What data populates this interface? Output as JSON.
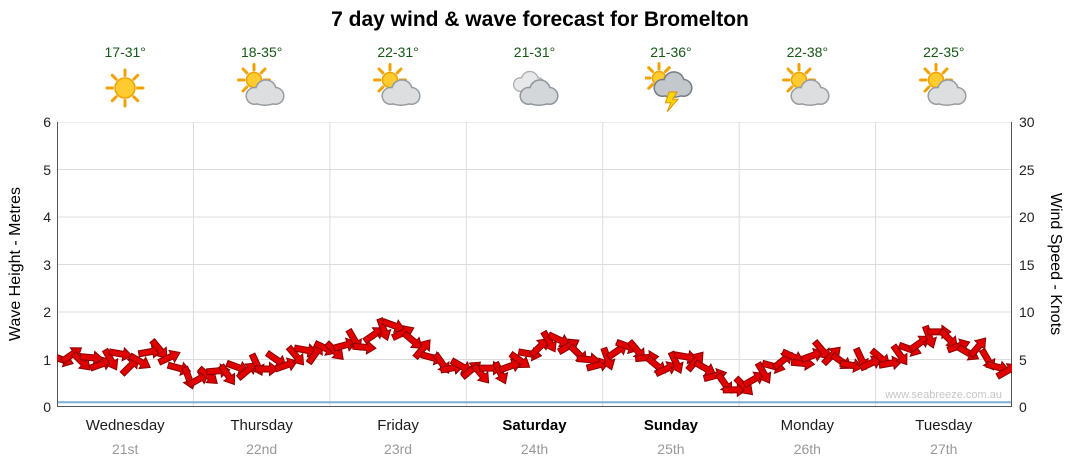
{
  "watermark": "www.seabreeze.com.au",
  "days": [
    {
      "name": "Wednesday",
      "date": "21st",
      "weekend": false
    },
    {
      "name": "Thursday",
      "date": "22nd",
      "weekend": false
    },
    {
      "name": "Friday",
      "date": "23rd",
      "weekend": false
    },
    {
      "name": "Saturday",
      "date": "24th",
      "weekend": true
    },
    {
      "name": "Sunday",
      "date": "25th",
      "weekend": true
    },
    {
      "name": "Monday",
      "date": "26th",
      "weekend": false
    },
    {
      "name": "Tuesday",
      "date": "27th",
      "weekend": false
    }
  ],
  "chart_data": {
    "type": "line",
    "title": "7 day wind & wave forecast for Bromelton",
    "categories": [
      "Wednesday 21st",
      "Thursday 22nd",
      "Friday 23rd",
      "Saturday 24th",
      "Sunday 25th",
      "Monday 26th",
      "Tuesday 27th"
    ],
    "temperatures_c": [
      "17-31°",
      "18-35°",
      "22-31°",
      "21-31°",
      "21-36°",
      "22-38°",
      "22-35°"
    ],
    "conditions": [
      "sunny",
      "sun-cloud",
      "sun-cloud",
      "cloudy",
      "storm",
      "sun-cloud",
      "sun-cloud"
    ],
    "left_axis": {
      "label": "Wave Height - Metres",
      "range": [
        0,
        6
      ],
      "ticks": [
        0,
        1,
        2,
        3,
        4,
        5,
        6
      ]
    },
    "right_axis": {
      "label": "Wind Speed - Knots",
      "range": [
        0,
        30
      ],
      "ticks": [
        0,
        5,
        10,
        15,
        20,
        25,
        30
      ]
    },
    "points_per_day": 14,
    "grid": true,
    "series": [
      {
        "name": "Wind Speed",
        "unit": "knots",
        "axis": "right",
        "style": "direction-arrows",
        "color": "#E00000",
        "values": [
          5.0,
          5.5,
          4.8,
          5.2,
          4.5,
          5.0,
          5.6,
          4.3,
          4.8,
          5.8,
          6.1,
          5.2,
          4.1,
          3.1,
          2.9,
          3.3,
          3.8,
          3.4,
          4.2,
          3.8,
          4.5,
          4.0,
          5.0,
          4.4,
          5.4,
          6.0,
          5.6,
          6.2,
          5.9,
          6.5,
          7.1,
          6.3,
          7.6,
          8.2,
          8.6,
          7.8,
          7.0,
          6.1,
          5.2,
          4.6,
          4.1,
          4.3,
          3.9,
          3.5,
          4.1,
          3.6,
          4.3,
          4.9,
          5.6,
          6.3,
          6.9,
          7.1,
          6.4,
          5.6,
          5.0,
          4.4,
          5.1,
          5.9,
          6.4,
          6.0,
          5.2,
          4.4,
          4.0,
          4.7,
          5.3,
          4.8,
          4.1,
          3.3,
          2.5,
          1.8,
          2.2,
          2.9,
          3.6,
          4.3,
          4.9,
          5.3,
          4.6,
          5.4,
          6.0,
          5.4,
          4.8,
          4.4,
          5.1,
          4.6,
          5.2,
          4.6,
          5.5,
          6.1,
          6.7,
          7.4,
          7.9,
          7.2,
          6.4,
          5.7,
          6.3,
          5.0,
          4.2,
          3.8
        ],
        "directions_deg": [
          20,
          -35,
          45,
          5,
          -20,
          60,
          10,
          -45,
          30,
          -10,
          50,
          -25,
          15,
          70,
          -30,
          40,
          -5,
          55,
          20,
          -40,
          65,
          0,
          35,
          -20,
          50,
          10,
          -55,
          25,
          45,
          -15,
          60,
          5,
          -35,
          70,
          20,
          -25,
          40,
          -50,
          15,
          55,
          -10,
          30,
          -40,
          50,
          0,
          65,
          -20,
          35,
          10,
          -45,
          60,
          25,
          -30,
          45,
          5,
          -15,
          70,
          -35,
          20,
          50,
          -5,
          40,
          -25,
          65,
          10,
          -50,
          30,
          -15,
          55,
          0,
          45,
          -30,
          60,
          15,
          -40,
          25,
          5,
          -20,
          50,
          -45,
          35,
          10,
          65,
          -25,
          40,
          -10,
          55,
          20,
          -35,
          70,
          0,
          45,
          -20,
          30,
          -50,
          60,
          15,
          -30
        ]
      },
      {
        "name": "Wave Height",
        "unit": "metres",
        "axis": "left",
        "style": "line",
        "color": "#7FAFD4",
        "constant_value": 0.1
      }
    ]
  }
}
